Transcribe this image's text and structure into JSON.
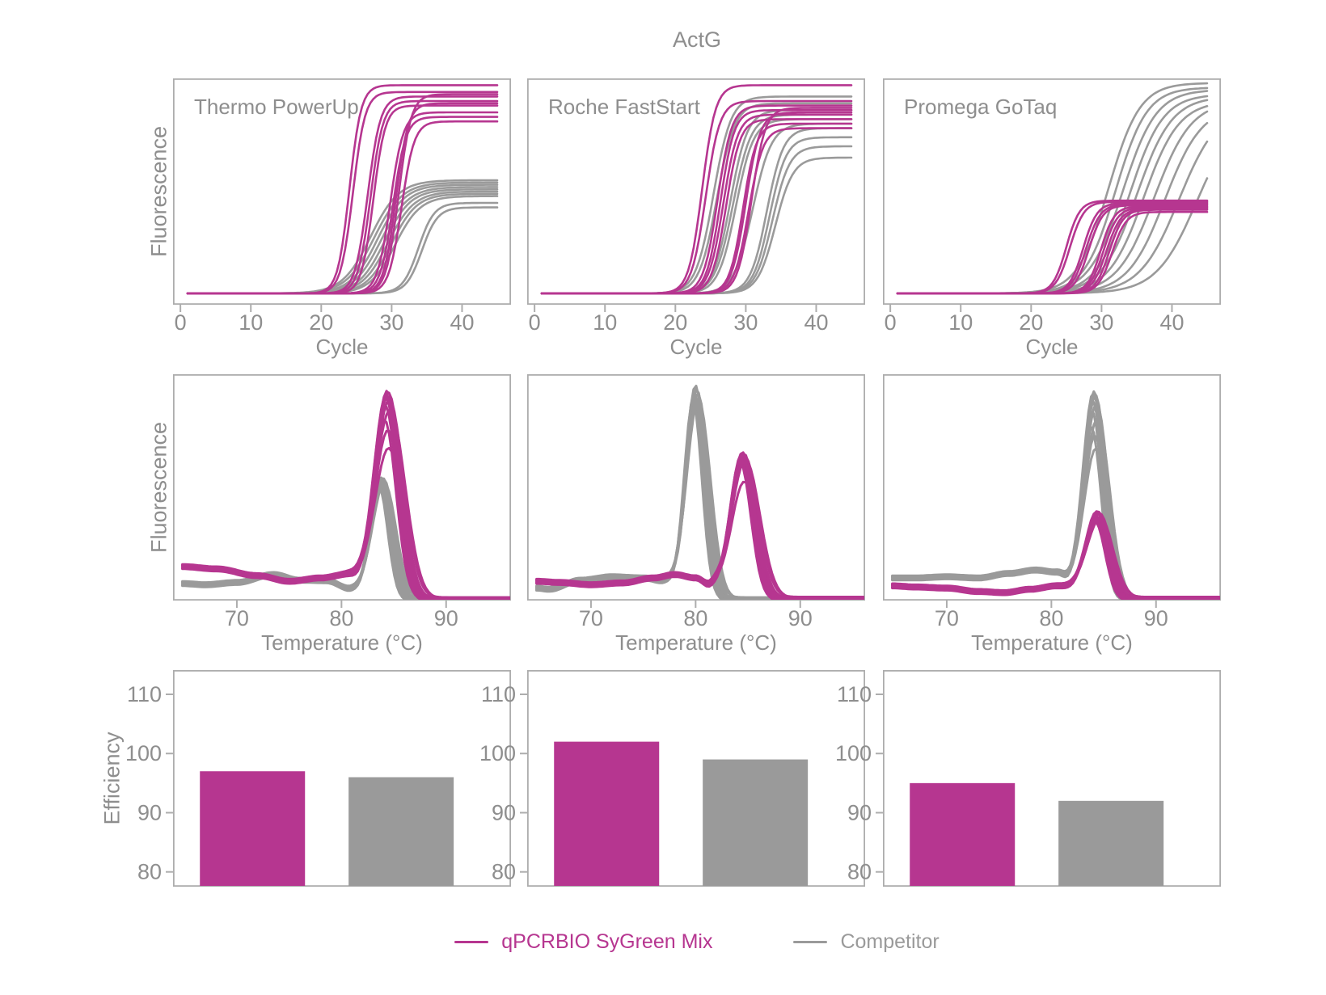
{
  "title": "ActG",
  "columns": [
    "Thermo PowerUp",
    "Roche FastStart",
    "Promega GoTaq"
  ],
  "colors": {
    "sygreen": "#b63690",
    "competitor": "#9a9a9a",
    "axis": "#adadad",
    "text": "#8e8e8e"
  },
  "legend": {
    "items": [
      {
        "key": "sygreen",
        "label": "qPCRBIO SyGreen Mix",
        "icon": "line-swatch"
      },
      {
        "key": "competitor",
        "label": "Competitor",
        "icon": "line-swatch"
      }
    ]
  },
  "chart_data": {
    "amplification": {
      "type": "line",
      "xlabel": "Cycle",
      "ylabel": "Fluorescence",
      "xlim": [
        -1.05,
        46.95
      ],
      "xticks": [
        0,
        10,
        20,
        30,
        40
      ],
      "x_range": [
        1,
        45
      ],
      "baseline": 0.05,
      "grid": false,
      "panels": [
        {
          "label": "Thermo PowerUp",
          "groups": [
            {
              "key": "competitor",
              "midpoints": [
                27.0,
                27.5,
                28.0,
                28.5,
                29.0,
                29.5,
                30.0,
                30.5,
                33.8,
                34.3
              ],
              "steepness": [
                0.5,
                0.5,
                0.52,
                0.52,
                0.54,
                0.54,
                0.56,
                0.56,
                0.9,
                0.9
              ],
              "plateaus": [
                0.5,
                0.49,
                0.48,
                0.47,
                0.46,
                0.45,
                0.44,
                0.43,
                0.4,
                0.38
              ]
            },
            {
              "key": "sygreen",
              "midpoints": [
                24.0,
                24.5,
                26.6,
                27.0,
                27.4,
                29.8,
                30.2,
                30.6,
                31.0,
                31.4
              ],
              "steepness": [
                1.2,
                1.15,
                1.1,
                1.12,
                1.18,
                1.08,
                1.1,
                1.15,
                1.12,
                1.1
              ],
              "plateaus": [
                0.92,
                0.89,
                0.87,
                0.85,
                0.83,
                0.8,
                0.78,
                0.84,
                0.88,
                0.76
              ]
            }
          ]
        },
        {
          "label": "Roche FastStart",
          "groups": [
            {
              "key": "competitor",
              "midpoints": [
                25.4,
                25.9,
                27.8,
                28.2,
                28.6,
                31.0,
                33.0,
                33.4,
                33.8,
                34.2
              ],
              "steepness": [
                0.8,
                0.8,
                0.82,
                0.78,
                0.8,
                0.75,
                0.85,
                0.85,
                0.82,
                0.8
              ],
              "plateaus": [
                0.87,
                0.84,
                0.81,
                0.79,
                0.77,
                0.75,
                0.73,
                0.69,
                0.65,
                0.6
              ]
            },
            {
              "key": "sygreen",
              "midpoints": [
                23.8,
                24.3,
                26.0,
                26.4,
                26.8,
                27.2,
                29.6,
                30.0,
                30.4,
                30.8
              ],
              "steepness": [
                1.05,
                1.0,
                1.0,
                1.02,
                0.98,
                1.0,
                1.05,
                1.0,
                0.98,
                1.02
              ],
              "plateaus": [
                0.92,
                0.85,
                0.83,
                0.81,
                0.79,
                0.77,
                0.75,
                0.8,
                0.73,
                0.82
              ]
            }
          ]
        },
        {
          "label": "Promega GoTaq",
          "groups": [
            {
              "key": "competitor",
              "midpoints": [
                31.0,
                32.0,
                33.0,
                34.0,
                35.0,
                36.0,
                37.5,
                39.0,
                41.0,
                43.5
              ],
              "steepness": [
                0.45,
                0.45,
                0.42,
                0.42,
                0.4,
                0.4,
                0.38,
                0.38,
                0.36,
                0.35
              ],
              "plateaus": [
                0.93,
                0.91,
                0.9,
                0.88,
                0.87,
                0.85,
                0.85,
                0.83,
                0.83,
                0.81
              ]
            },
            {
              "key": "sygreen",
              "midpoints": [
                25.0,
                25.5,
                27.4,
                27.8,
                28.2,
                29.9,
                30.3,
                30.7,
                31.1,
                31.5
              ],
              "steepness": [
                1.05,
                1.0,
                1.02,
                0.98,
                1.0,
                1.05,
                1.0,
                0.98,
                1.02,
                1.0
              ],
              "plateaus": [
                0.41,
                0.405,
                0.4,
                0.395,
                0.39,
                0.385,
                0.38,
                0.375,
                0.37,
                0.36
              ]
            }
          ]
        }
      ]
    },
    "melt": {
      "type": "line",
      "xlabel": "Temperature (°C)",
      "ylabel": "Fluorescence",
      "xlim": [
        63.9,
        96.2
      ],
      "xticks": [
        70,
        80,
        90
      ],
      "t_range": [
        64.8,
        96.2
      ],
      "grid": false,
      "replicate_jitter": {
        "center": [
          0,
          0.12,
          -0.12,
          0.22,
          -0.18,
          0.3,
          -0.25,
          0.08,
          0.18,
          -0.08
        ],
        "sigma": [
          1,
          1.04,
          0.96,
          1.1,
          0.92,
          1.18,
          0.9,
          1.02,
          1.12,
          0.98
        ],
        "offset": [
          0,
          0.006,
          -0.006,
          0.01,
          -0.01,
          0.004,
          -0.004,
          0.008,
          -0.008,
          0.002
        ]
      },
      "panels": [
        {
          "label": "Thermo PowerUp",
          "groups": [
            {
              "key": "competitor",
              "baseline_points": [
                [
                  64.8,
                  0.075
                ],
                [
                  67,
                  0.07
                ],
                [
                  70,
                  0.08
                ],
                [
                  73.5,
                  0.115
                ],
                [
                  76,
                  0.09
                ],
                [
                  78.5,
                  0.088
                ],
                [
                  81,
                  0.05
                ],
                [
                  84,
                  0.012
                ],
                [
                  86,
                  0.004
                ],
                [
                  96.2,
                  0.004
                ]
              ],
              "peak": {
                "center": 83.8,
                "sigma": 0.95
              },
              "peak_heights": [
                0.53,
                0.525,
                0.52,
                0.515,
                0.51,
                0.505,
                0.5,
                0.51,
                0.52,
                0.53
              ]
            },
            {
              "key": "sygreen",
              "baseline_points": [
                [
                  64.8,
                  0.15
                ],
                [
                  68,
                  0.14
                ],
                [
                  72,
                  0.11
                ],
                [
                  75,
                  0.085
                ],
                [
                  78,
                  0.1
                ],
                [
                  80.5,
                  0.115
                ],
                [
                  82,
                  0.09
                ],
                [
                  86.5,
                  0.01
                ],
                [
                  88,
                  0.004
                ],
                [
                  96.2,
                  0.004
                ]
              ],
              "peak": {
                "center": 84.4,
                "sigma": 1.2
              },
              "peak_heights": [
                0.88,
                0.87,
                0.85,
                0.84,
                0.82,
                0.8,
                0.75,
                0.7,
                0.64,
                0.86
              ]
            }
          ]
        },
        {
          "label": "Roche FastStart",
          "groups": [
            {
              "key": "competitor",
              "baseline_points": [
                [
                  64.8,
                  0.055
                ],
                [
                  66,
                  0.05
                ],
                [
                  69,
                  0.09
                ],
                [
                  72,
                  0.105
                ],
                [
                  75,
                  0.1
                ],
                [
                  77,
                  0.085
                ],
                [
                  79,
                  0.04
                ],
                [
                  81.5,
                  0.012
                ],
                [
                  83,
                  0.004
                ],
                [
                  96.2,
                  0.004
                ]
              ],
              "peak": {
                "center": 80.0,
                "sigma": 0.95
              },
              "peak_heights": [
                0.92,
                0.9,
                0.89,
                0.88,
                0.87,
                0.86,
                0.85,
                0.84,
                0.86,
                0.88
              ]
            },
            {
              "key": "sygreen",
              "baseline_points": [
                [
                  64.8,
                  0.085
                ],
                [
                  67,
                  0.08
                ],
                [
                  70,
                  0.07
                ],
                [
                  73,
                  0.078
                ],
                [
                  76,
                  0.1
                ],
                [
                  78,
                  0.115
                ],
                [
                  80,
                  0.1
                ],
                [
                  81.5,
                  0.06
                ],
                [
                  83.5,
                  0.02
                ],
                [
                  86,
                  0.006
                ],
                [
                  96.2,
                  0.006
                ]
              ],
              "peak": {
                "center": 84.5,
                "sigma": 1.15
              },
              "peak_heights": [
                0.64,
                0.63,
                0.62,
                0.615,
                0.61,
                0.605,
                0.6,
                0.59,
                0.52,
                0.63
              ]
            }
          ]
        },
        {
          "label": "Promega GoTaq",
          "groups": [
            {
              "key": "competitor",
              "baseline_points": [
                [
                  64.8,
                  0.1
                ],
                [
                  67,
                  0.1
                ],
                [
                  70,
                  0.105
                ],
                [
                  73,
                  0.1
                ],
                [
                  76,
                  0.12
                ],
                [
                  78.5,
                  0.135
                ],
                [
                  80.5,
                  0.125
                ],
                [
                  82,
                  0.08
                ],
                [
                  84.5,
                  0.02
                ],
                [
                  86.5,
                  0.005
                ],
                [
                  96.2,
                  0.005
                ]
              ],
              "peak": {
                "center": 84.1,
                "sigma": 1.0
              },
              "peak_heights": [
                0.9,
                0.88,
                0.86,
                0.84,
                0.82,
                0.78,
                0.74,
                0.7,
                0.66,
                0.89
              ]
            },
            {
              "key": "sygreen",
              "baseline_points": [
                [
                  64.8,
                  0.065
                ],
                [
                  67,
                  0.06
                ],
                [
                  70,
                  0.055
                ],
                [
                  73,
                  0.04
                ],
                [
                  75.5,
                  0.035
                ],
                [
                  78,
                  0.05
                ],
                [
                  80.5,
                  0.065
                ],
                [
                  82,
                  0.06
                ],
                [
                  84.5,
                  0.025
                ],
                [
                  86.5,
                  0.006
                ],
                [
                  96.2,
                  0.006
                ]
              ],
              "peak": {
                "center": 84.4,
                "sigma": 1.05
              },
              "peak_heights": [
                0.37,
                0.36,
                0.355,
                0.35,
                0.345,
                0.34,
                0.33,
                0.32,
                0.345,
                0.365
              ]
            }
          ]
        }
      ]
    },
    "efficiency": {
      "type": "bar",
      "ylabel": "Efficiency",
      "ylim": [
        77.5,
        114.1
      ],
      "yticks": [
        80,
        90,
        100,
        110
      ],
      "grid": false,
      "categories": [
        "Thermo PowerUp",
        "Roche FastStart",
        "Promega GoTaq"
      ],
      "series": [
        {
          "name": "qPCRBIO SyGreen Mix",
          "key": "sygreen",
          "values": [
            97,
            102,
            95
          ]
        },
        {
          "name": "Competitor",
          "key": "competitor",
          "values": [
            96,
            99,
            92
          ]
        }
      ]
    }
  }
}
